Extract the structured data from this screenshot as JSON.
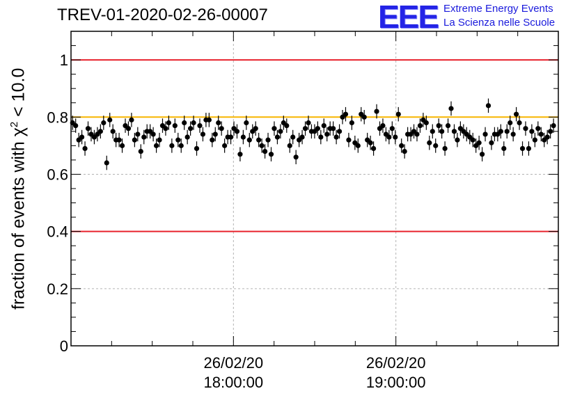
{
  "header": {
    "title": "TREV-01-2020-02-26-00007",
    "logo_mark": "EEE",
    "logo_line1": "Extreme Energy Events",
    "logo_line2": "La Scienza nelle Scuole"
  },
  "chart_data": {
    "type": "scatter",
    "title": "TREV-01-2020-02-26-00007",
    "ylabel": "fraction of events with χ2 < 10.0",
    "ylabel_main": "fraction of events with",
    "ylabel_symbol": "χ",
    "ylabel_sup": "2",
    "ylabel_tail": " < 10.0",
    "xlabel": "",
    "ylim": [
      0,
      1.1
    ],
    "xlim_hours": [
      17.0,
      20.0
    ],
    "y_ticks": [
      "0",
      "0.2",
      "0.4",
      "0.6",
      "0.8",
      "1"
    ],
    "y_tick_values": [
      0,
      0.2,
      0.4,
      0.6,
      0.8,
      1.0
    ],
    "x_ticks": [
      {
        "time_hours": 18.0,
        "line1": "26/02/20",
        "line2": "18:00:00"
      },
      {
        "time_hours": 19.0,
        "line1": "26/02/20",
        "line2": "19:00:00"
      }
    ],
    "grid": true,
    "reference_lines": [
      {
        "y": 1.0,
        "color": "#e8232d"
      },
      {
        "y": 0.8,
        "color": "#f7b500"
      },
      {
        "y": 0.4,
        "color": "#e8232d"
      }
    ],
    "error_bar": 0.025,
    "series": [
      {
        "marker_color": "#000000",
        "values": [
          0.78,
          0.77,
          0.72,
          0.73,
          0.69,
          0.76,
          0.74,
          0.73,
          0.74,
          0.75,
          0.78,
          0.64,
          0.79,
          0.75,
          0.72,
          0.72,
          0.7,
          0.77,
          0.76,
          0.79,
          0.72,
          0.74,
          0.68,
          0.73,
          0.75,
          0.75,
          0.74,
          0.7,
          0.72,
          0.77,
          0.76,
          0.78,
          0.7,
          0.77,
          0.72,
          0.7,
          0.78,
          0.73,
          0.76,
          0.78,
          0.69,
          0.77,
          0.74,
          0.79,
          0.79,
          0.72,
          0.74,
          0.78,
          0.76,
          0.7,
          0.73,
          0.73,
          0.76,
          0.75,
          0.67,
          0.73,
          0.78,
          0.72,
          0.75,
          0.76,
          0.72,
          0.7,
          0.68,
          0.72,
          0.67,
          0.76,
          0.73,
          0.75,
          0.78,
          0.77,
          0.7,
          0.73,
          0.66,
          0.72,
          0.73,
          0.76,
          0.78,
          0.75,
          0.75,
          0.76,
          0.73,
          0.77,
          0.74,
          0.76,
          0.76,
          0.73,
          0.75,
          0.8,
          0.81,
          0.72,
          0.78,
          0.71,
          0.7,
          0.81,
          0.8,
          0.72,
          0.71,
          0.69,
          0.82,
          0.76,
          0.77,
          0.74,
          0.73,
          0.76,
          0.73,
          0.81,
          0.7,
          0.68,
          0.74,
          0.74,
          0.75,
          0.74,
          0.77,
          0.79,
          0.78,
          0.71,
          0.75,
          0.7,
          0.77,
          0.75,
          0.69,
          0.77,
          0.83,
          0.75,
          0.72,
          0.76,
          0.75,
          0.74,
          0.73,
          0.72,
          0.7,
          0.71,
          0.67,
          0.74,
          0.84,
          0.71,
          0.74,
          0.74,
          0.75,
          0.69,
          0.75,
          0.78,
          0.74,
          0.81,
          0.78,
          0.69,
          0.76,
          0.69,
          0.75,
          0.72,
          0.76,
          0.74,
          0.72,
          0.73,
          0.75,
          0.77
        ],
        "x_start_hours": 17.0,
        "x_end_hours": 19.98
      }
    ],
    "colors": {
      "marker": "#000000",
      "grid": "#b4b4b4",
      "red_line": "#e8232d",
      "orange_line": "#f7b500"
    }
  }
}
